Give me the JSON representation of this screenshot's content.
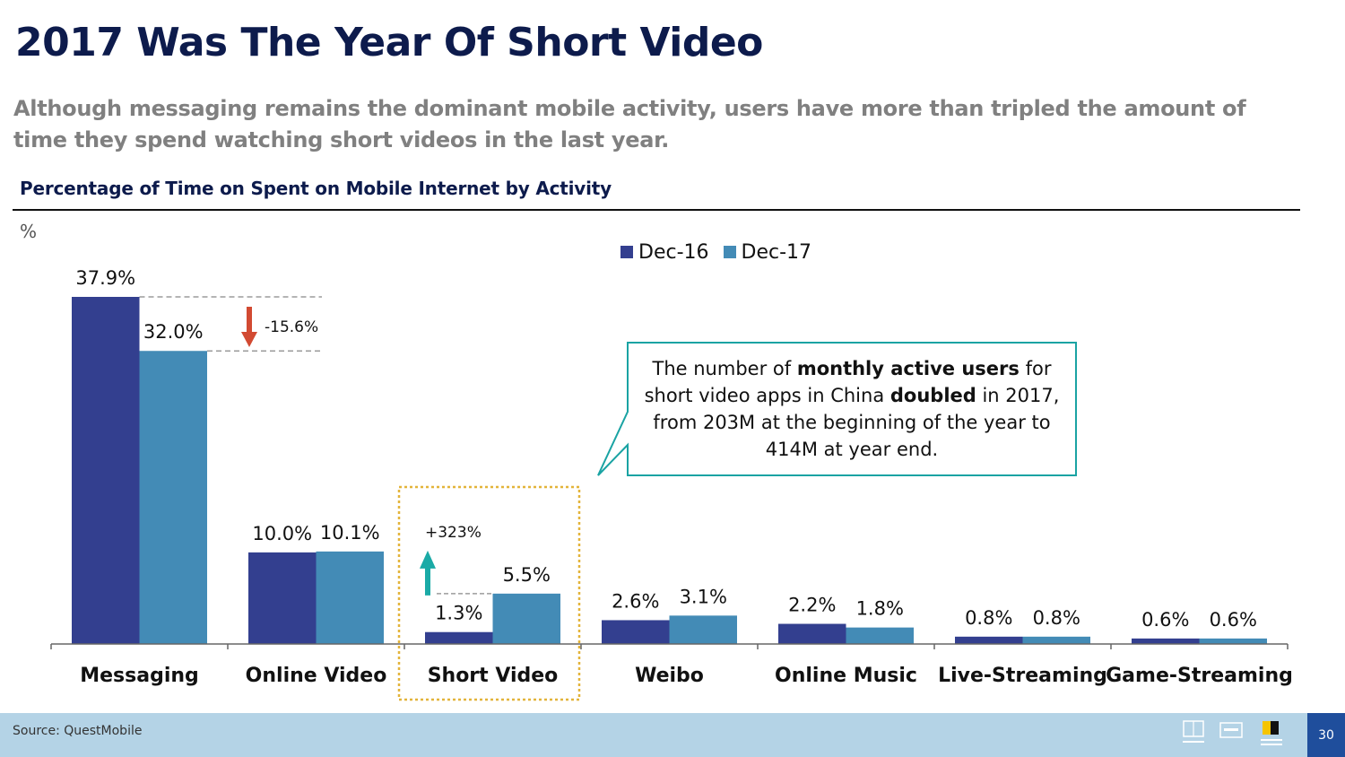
{
  "header": {
    "title": "2017 Was The Year Of Short Video",
    "subtitle": "Although messaging remains the dominant mobile activity, users have more than tripled the amount of time they spend watching short videos in the last year."
  },
  "colors": {
    "dec16": "#333f8f",
    "dec17": "#438bb6",
    "decrease_arrow": "#d24a32",
    "increase_arrow": "#1aaaa6",
    "highlight_box": "#e3b43a",
    "callout_border": "#1aa3a3",
    "footer_bg": "#b4d3e6",
    "page_number_bg": "#1f4e9c"
  },
  "chart_data": {
    "type": "bar",
    "title": "Percentage of Time on Spent on Mobile Internet by Activity",
    "ylabel": "%",
    "categories": [
      "Messaging",
      "Online Video",
      "Short Video",
      "Weibo",
      "Online Music",
      "Live-Streaming",
      "Game-Streaming"
    ],
    "series": [
      {
        "name": "Dec-16",
        "values": [
          37.9,
          10.0,
          1.3,
          2.6,
          2.2,
          0.8,
          0.6
        ],
        "labels": [
          "37.9%",
          "10.0%",
          "1.3%",
          "2.6%",
          "2.2%",
          "0.8%",
          "0.6%"
        ]
      },
      {
        "name": "Dec-17",
        "values": [
          32.0,
          10.1,
          5.5,
          3.1,
          1.8,
          0.8,
          0.6
        ],
        "labels": [
          "32.0%",
          "10.1%",
          "5.5%",
          "3.1%",
          "1.8%",
          "0.8%",
          "0.6%"
        ]
      }
    ],
    "ylim": [
      0,
      37.9
    ],
    "grid": false,
    "legend_position": "top",
    "highlighted_category": "Short Video",
    "annotations": [
      {
        "category": "Messaging",
        "text": "-15.6%",
        "direction": "down"
      },
      {
        "category": "Short Video",
        "text": "+323%",
        "direction": "up"
      }
    ]
  },
  "callout": {
    "part1": "The number of ",
    "bold1": "monthly active users",
    "part2": " for short video apps in China ",
    "bold2": "doubled",
    "part3": " in 2017, from 203M at the beginning of the year to 414M at year end."
  },
  "footer": {
    "source": "Source: QuestMobile",
    "page_number": "30"
  }
}
